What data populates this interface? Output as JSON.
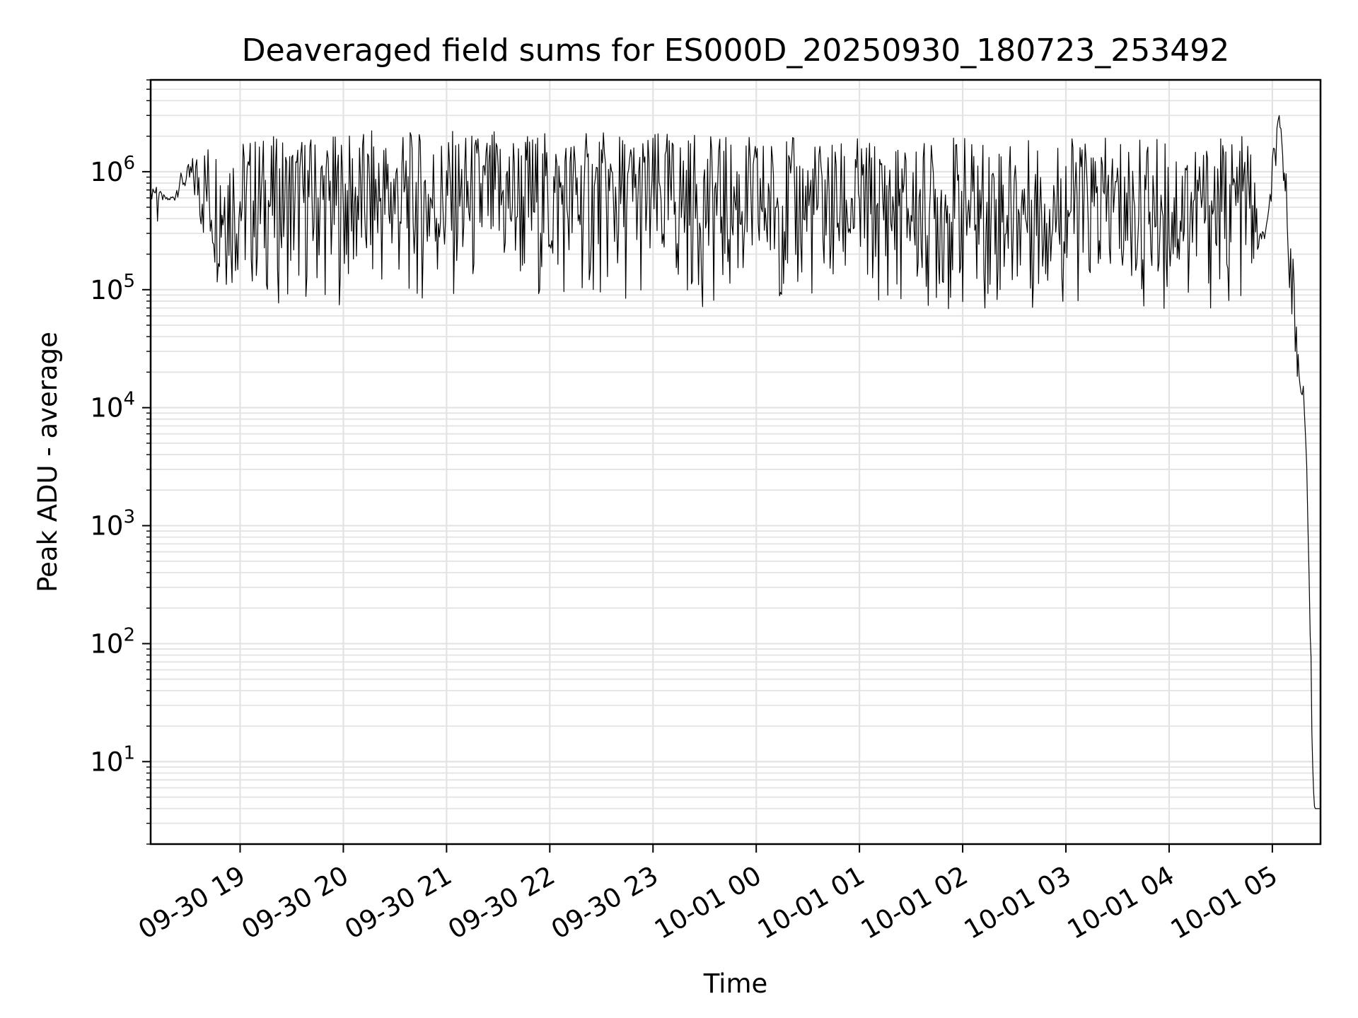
{
  "chart_data": {
    "type": "line",
    "title": "Deaveraged field sums for ES000D_20250930_180723_253492",
    "xlabel": "Time",
    "ylabel": "Peak ADU - average",
    "yscale": "log",
    "grid": true,
    "line_color": "#000000",
    "grid_color": "#e3e3e3",
    "xlim": [
      "2025-09-30 18:08",
      "2025-10-01 05:28"
    ],
    "ylim": [
      2,
      6000000
    ],
    "x_ticks": [
      {
        "t": "2025-09-30 19:00",
        "label": "09-30 19"
      },
      {
        "t": "2025-09-30 20:00",
        "label": "09-30 20"
      },
      {
        "t": "2025-09-30 21:00",
        "label": "09-30 21"
      },
      {
        "t": "2025-09-30 22:00",
        "label": "09-30 22"
      },
      {
        "t": "2025-09-30 23:00",
        "label": "09-30 23"
      },
      {
        "t": "2025-10-01 00:00",
        "label": "10-01 00"
      },
      {
        "t": "2025-10-01 01:00",
        "label": "10-01 01"
      },
      {
        "t": "2025-10-01 02:00",
        "label": "10-01 02"
      },
      {
        "t": "2025-10-01 03:00",
        "label": "10-01 03"
      },
      {
        "t": "2025-10-01 04:00",
        "label": "10-01 04"
      },
      {
        "t": "2025-10-01 05:00",
        "label": "10-01 05"
      }
    ],
    "y_ticks": [
      {
        "value": 10,
        "base": "10",
        "exp": "1"
      },
      {
        "value": 100,
        "base": "10",
        "exp": "2"
      },
      {
        "value": 1000,
        "base": "10",
        "exp": "3"
      },
      {
        "value": 10000,
        "base": "10",
        "exp": "4"
      },
      {
        "value": 100000,
        "base": "10",
        "exp": "5"
      },
      {
        "value": 1000000,
        "base": "10",
        "exp": "6"
      }
    ],
    "series": [
      {
        "x": [
          "2025-09-30 18:08",
          "2025-09-30 18:10",
          "2025-09-30 18:12",
          "2025-09-30 18:13",
          "2025-09-30 18:15",
          "2025-09-30 18:18",
          "2025-09-30 18:22",
          "2025-09-30 18:25",
          "2025-09-30 18:28",
          "2025-09-30 18:30",
          "2025-09-30 18:33",
          "2025-09-30 18:36",
          "2025-09-30 18:38",
          "2025-09-30 18:40",
          "2025-09-30 18:42",
          "2025-09-30 18:44",
          "2025-09-30 18:46",
          "2025-09-30 18:48",
          "2025-09-30 18:49",
          "2025-09-30 18:50",
          "2025-09-30 18:51",
          "2025-09-30 18:52",
          "2025-09-30 18:53",
          "2025-09-30 18:54",
          "2025-09-30 18:56",
          "2025-09-30 18:58",
          "2025-09-30 19:00",
          "2025-09-30 19:10",
          "2025-09-30 19:20",
          "2025-09-30 19:30",
          "2025-09-30 19:40",
          "2025-09-30 19:50",
          "2025-09-30 20:00",
          "2025-09-30 20:10",
          "2025-09-30 20:20",
          "2025-09-30 20:30",
          "2025-09-30 20:40",
          "2025-09-30 20:50",
          "2025-09-30 21:00",
          "2025-09-30 21:10",
          "2025-09-30 21:20",
          "2025-09-30 21:30",
          "2025-09-30 21:40",
          "2025-09-30 21:50",
          "2025-09-30 22:00",
          "2025-09-30 22:10",
          "2025-09-30 22:20",
          "2025-09-30 22:30",
          "2025-09-30 22:40",
          "2025-09-30 22:50",
          "2025-09-30 23:00",
          "2025-09-30 23:10",
          "2025-09-30 23:20",
          "2025-09-30 23:30",
          "2025-09-30 23:40",
          "2025-09-30 23:50",
          "2025-10-01 00:00",
          "2025-10-01 00:10",
          "2025-10-01 00:20",
          "2025-10-01 00:30",
          "2025-10-01 00:40",
          "2025-10-01 00:50",
          "2025-10-01 01:00",
          "2025-10-01 01:10",
          "2025-10-01 01:20",
          "2025-10-01 01:30",
          "2025-10-01 01:40",
          "2025-10-01 01:50",
          "2025-10-01 02:00",
          "2025-10-01 02:10",
          "2025-10-01 02:20",
          "2025-10-01 02:30",
          "2025-10-01 02:40",
          "2025-10-01 02:50",
          "2025-10-01 03:00",
          "2025-10-01 03:10",
          "2025-10-01 03:20",
          "2025-10-01 03:30",
          "2025-10-01 03:40",
          "2025-10-01 03:50",
          "2025-10-01 04:00",
          "2025-10-01 04:10",
          "2025-10-01 04:20",
          "2025-10-01 04:30",
          "2025-10-01 04:40",
          "2025-10-01 04:48",
          "2025-10-01 04:52",
          "2025-10-01 04:56",
          "2025-10-01 04:58",
          "2025-10-01 05:00",
          "2025-10-01 05:02",
          "2025-10-01 05:04",
          "2025-10-01 05:05",
          "2025-10-01 05:06",
          "2025-10-01 05:07",
          "2025-10-01 05:08",
          "2025-10-01 05:10",
          "2025-10-01 05:12",
          "2025-10-01 05:14",
          "2025-10-01 05:15",
          "2025-10-01 05:16",
          "2025-10-01 05:18",
          "2025-10-01 05:20",
          "2025-10-01 05:22",
          "2025-10-01 05:23",
          "2025-10-01 05:24",
          "2025-10-01 05:25",
          "2025-10-01 05:26",
          "2025-10-01 05:28"
        ],
        "upper": [
          700000,
          900000,
          1100000,
          700000,
          650000,
          600000,
          650000,
          1000000,
          900000,
          1200000,
          1400000,
          1700000,
          1900000,
          1900000,
          2000000,
          1800000,
          1900000,
          1900000,
          1900000,
          1900000,
          2000000,
          2000000,
          2000000,
          2000000,
          2000000,
          2000000,
          2000000,
          2100000,
          2000000,
          2100000,
          2100000,
          2100000,
          2100000,
          2200000,
          2300000,
          2300000,
          2200000,
          2200000,
          2300000,
          2200000,
          2300000,
          2300000,
          2300000,
          2300000,
          2200000,
          2200000,
          2200000,
          2200000,
          2200000,
          2200000,
          2200000,
          2200000,
          2200000,
          2000000,
          2000000,
          2000000,
          2000000,
          2000000,
          2000000,
          1800000,
          2000000,
          1800000,
          2000000,
          1800000,
          1800000,
          1800000,
          1800000,
          2000000,
          2000000,
          1800000,
          2000000,
          1800000,
          1900000,
          1900000,
          2000000,
          1900000,
          1900000,
          2000000,
          1900000,
          1900000,
          2000000,
          2000000,
          1900000,
          2000000,
          2000000,
          2000000,
          300000,
          350000,
          500000,
          1500000,
          2500000,
          3000000,
          2500000,
          1800000,
          1300000,
          1000000,
          600000,
          200000,
          60000,
          40000,
          20000,
          18000,
          4000,
          300,
          20,
          6,
          4,
          4,
          4
        ],
        "lower": [
          600000,
          500000,
          250000,
          600000,
          550000,
          550000,
          550000,
          650000,
          700000,
          600000,
          450000,
          300000,
          200000,
          150000,
          120000,
          110000,
          100000,
          95000,
          90000,
          85000,
          85000,
          85000,
          85000,
          80000,
          80000,
          80000,
          80000,
          75000,
          75000,
          75000,
          72000,
          72000,
          72000,
          70000,
          70000,
          70000,
          70000,
          68000,
          68000,
          68000,
          70000,
          70000,
          70000,
          70000,
          72000,
          72000,
          72000,
          72000,
          72000,
          72000,
          72000,
          72000,
          72000,
          70000,
          70000,
          70000,
          68000,
          68000,
          66000,
          66000,
          66000,
          66000,
          65000,
          65000,
          62000,
          62000,
          60000,
          58000,
          62000,
          62000,
          62000,
          62000,
          63000,
          63000,
          63000,
          63000,
          62000,
          62000,
          62000,
          62000,
          62000,
          62000,
          62000,
          62000,
          65000,
          80000,
          200000,
          250000,
          300000,
          500000,
          900000,
          1100000,
          1100000,
          800000,
          600000,
          300000,
          100000,
          40000,
          12000,
          12000,
          15000,
          7000,
          1500,
          80,
          8,
          4,
          4,
          4,
          4
        ]
      }
    ]
  }
}
